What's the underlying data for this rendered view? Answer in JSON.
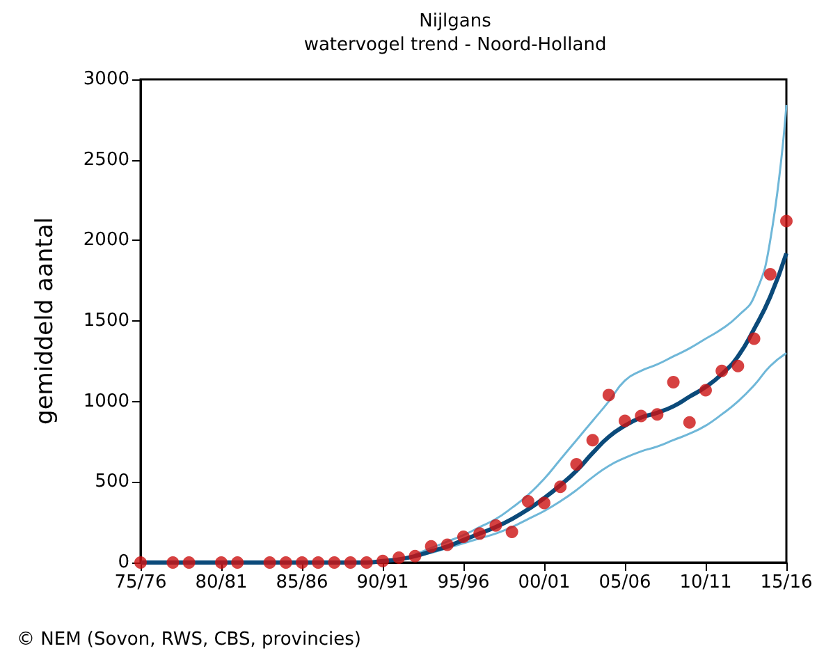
{
  "chart_data": {
    "type": "scatter",
    "title": "Nijlgans",
    "subtitle": "watervogel trend - Noord-Holland",
    "ylabel": "gemiddeld aantal",
    "annotations": [
      "© NEM (Sovon, RWS, CBS, provincies)"
    ],
    "categories": [
      "75/76",
      null,
      null,
      null,
      null,
      "80/81",
      null,
      null,
      null,
      null,
      "85/86",
      null,
      null,
      null,
      null,
      "90/91",
      null,
      null,
      null,
      null,
      "95/96",
      null,
      null,
      null,
      null,
      "00/01",
      null,
      null,
      null,
      null,
      "05/06",
      null,
      null,
      null,
      null,
      "10/11",
      null,
      null,
      null,
      null,
      "15/16"
    ],
    "series": [
      {
        "type": "line",
        "marker": "none",
        "color": "#6fb7d8",
        "values": [
          null,
          null,
          null,
          null,
          null,
          null,
          null,
          null,
          null,
          null,
          null,
          null,
          null,
          null,
          null,
          null,
          null,
          50,
          90,
          130,
          170,
          220,
          270,
          340,
          420,
          520,
          640,
          760,
          880,
          1000,
          1130,
          1190,
          1230,
          1280,
          1330,
          1390,
          1450,
          1530,
          1650,
          2000,
          2840
        ]
      },
      {
        "type": "line",
        "marker": "none",
        "color": "#6fb7d8",
        "values": [
          null,
          null,
          null,
          null,
          null,
          null,
          null,
          null,
          null,
          null,
          null,
          null,
          null,
          null,
          null,
          null,
          null,
          40,
          60,
          90,
          120,
          150,
          180,
          220,
          270,
          320,
          380,
          450,
          530,
          600,
          650,
          690,
          720,
          760,
          800,
          850,
          920,
          1000,
          1100,
          1220,
          1300
        ]
      },
      {
        "type": "line",
        "marker": "none",
        "color": "#0b4a7a",
        "values": [
          0,
          0,
          0,
          0,
          0,
          0,
          0,
          0,
          0,
          0,
          0,
          0,
          0,
          0,
          0,
          10,
          20,
          40,
          70,
          100,
          140,
          180,
          220,
          270,
          330,
          400,
          480,
          570,
          680,
          780,
          850,
          900,
          930,
          970,
          1030,
          1090,
          1170,
          1280,
          1450,
          1650,
          1920
        ]
      },
      {
        "marker": "circle",
        "color": "#cc1111",
        "values": [
          0,
          null,
          0,
          0,
          null,
          0,
          0,
          null,
          0,
          0,
          0,
          0,
          0,
          0,
          0,
          10,
          30,
          40,
          100,
          110,
          160,
          180,
          230,
          190,
          380,
          370,
          470,
          610,
          760,
          1040,
          880,
          910,
          920,
          1120,
          870,
          1070,
          1190,
          1220,
          1390,
          1790,
          2120
        ]
      }
    ],
    "ylim": [
      0,
      3000
    ],
    "yticks": [
      0,
      500,
      1000,
      1500,
      2000,
      2500,
      3000
    ],
    "grid": false
  }
}
